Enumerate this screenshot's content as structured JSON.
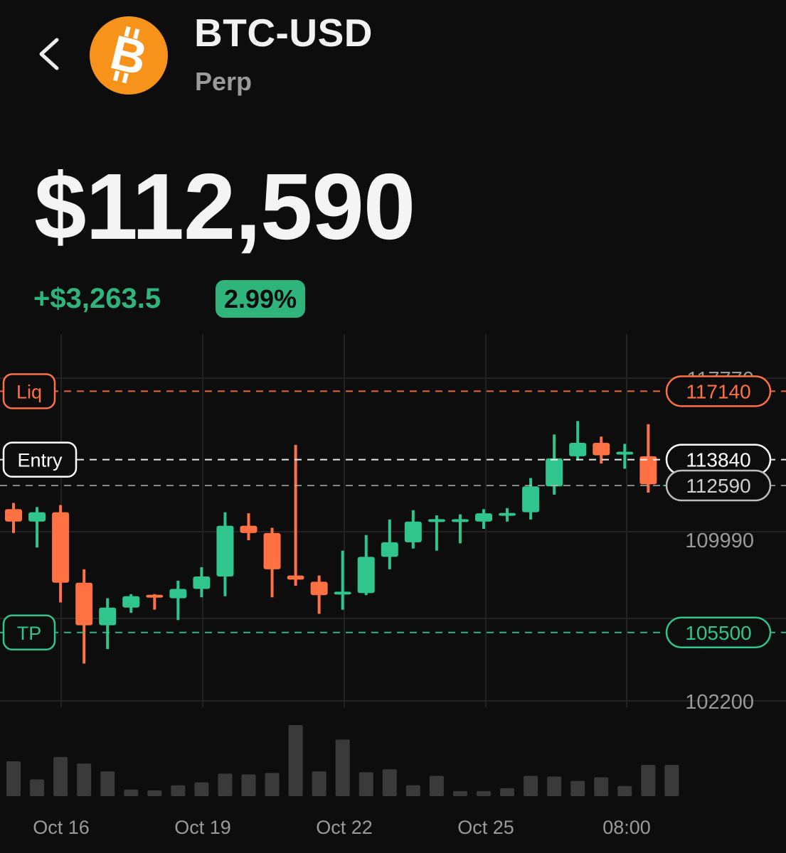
{
  "header": {
    "back_icon": "chevron-left-icon",
    "coin_icon": "bitcoin-icon",
    "symbol": "BTC-USD",
    "type": "Perp"
  },
  "price": {
    "value": "$112,590",
    "change": "+$3,263.5",
    "change_pct": "2.99%"
  },
  "colors": {
    "background": "#0d0d0d",
    "up": "#2fc58c",
    "down": "#ff7043",
    "bitcoin": "#f7931a",
    "grid": "#222222"
  },
  "chart_data": {
    "type": "candlestick",
    "ylim": [
      102200,
      117770
    ],
    "y_ticks": [
      "117770",
      "109990",
      "102200"
    ],
    "x_ticks": [
      "Oct 16",
      "Oct 19",
      "Oct 22",
      "Oct 25",
      "08:00"
    ],
    "reference_lines": [
      {
        "label": "Liq",
        "value": 117140,
        "value_label": "117140",
        "color": "#ff7043"
      },
      {
        "label": "Entry",
        "value": 113840,
        "value_label": "113840",
        "color": "#ffffff"
      },
      {
        "label": "",
        "value": 112590,
        "value_label": "112590",
        "color": "#bdbdbd"
      },
      {
        "label": "TP",
        "value": 105500,
        "value_label": "105500",
        "color": "#2fc58c"
      }
    ],
    "candles": [
      {
        "o": 111450,
        "h": 111750,
        "l": 110300,
        "c": 110850,
        "v": 48
      },
      {
        "o": 110850,
        "h": 111550,
        "l": 109600,
        "c": 111300,
        "v": 23
      },
      {
        "o": 111300,
        "h": 111650,
        "l": 106950,
        "c": 107900,
        "v": 54
      },
      {
        "o": 107900,
        "h": 108550,
        "l": 104000,
        "c": 105850,
        "v": 45
      },
      {
        "o": 105850,
        "h": 107150,
        "l": 104700,
        "c": 106700,
        "v": 34
      },
      {
        "o": 106700,
        "h": 107350,
        "l": 106450,
        "c": 107250,
        "v": 9
      },
      {
        "o": 107250,
        "h": 107350,
        "l": 106600,
        "c": 107150,
        "v": 8
      },
      {
        "o": 107150,
        "h": 108000,
        "l": 106100,
        "c": 107600,
        "v": 15
      },
      {
        "o": 107600,
        "h": 108650,
        "l": 107200,
        "c": 108200,
        "v": 19
      },
      {
        "o": 108200,
        "h": 111300,
        "l": 107250,
        "c": 110650,
        "v": 31
      },
      {
        "o": 110650,
        "h": 111250,
        "l": 109950,
        "c": 110300,
        "v": 30
      },
      {
        "o": 110300,
        "h": 110550,
        "l": 107200,
        "c": 108550,
        "v": 32
      },
      {
        "o": 108250,
        "h": 114550,
        "l": 107750,
        "c": 108050,
        "v": 98
      },
      {
        "o": 107950,
        "h": 108250,
        "l": 106400,
        "c": 107300,
        "v": 34
      },
      {
        "o": 107300,
        "h": 109450,
        "l": 106600,
        "c": 107400,
        "v": 78
      },
      {
        "o": 107400,
        "h": 110200,
        "l": 107300,
        "c": 109150,
        "v": 33
      },
      {
        "o": 109150,
        "h": 110950,
        "l": 108550,
        "c": 109850,
        "v": 37
      },
      {
        "o": 109850,
        "h": 111400,
        "l": 109550,
        "c": 110850,
        "v": 15
      },
      {
        "o": 110850,
        "h": 111150,
        "l": 109450,
        "c": 110900,
        "v": 28
      },
      {
        "o": 110900,
        "h": 111200,
        "l": 109800,
        "c": 110900,
        "v": 7
      },
      {
        "o": 110850,
        "h": 111450,
        "l": 110500,
        "c": 111250,
        "v": 7
      },
      {
        "o": 111150,
        "h": 111500,
        "l": 110850,
        "c": 111200,
        "v": 11
      },
      {
        "o": 111300,
        "h": 112950,
        "l": 110950,
        "c": 112550,
        "v": 28
      },
      {
        "o": 112550,
        "h": 115050,
        "l": 112150,
        "c": 113900,
        "v": 27
      },
      {
        "o": 114000,
        "h": 115700,
        "l": 113800,
        "c": 114650,
        "v": 21
      },
      {
        "o": 114650,
        "h": 114950,
        "l": 113650,
        "c": 114050,
        "v": 26
      },
      {
        "o": 114050,
        "h": 114600,
        "l": 113400,
        "c": 114150,
        "v": 14
      },
      {
        "o": 114000,
        "h": 115550,
        "l": 112250,
        "c": 112650,
        "v": 43
      },
      {
        "o": 112590,
        "h": 112590,
        "l": 112590,
        "c": 112590,
        "v": 43
      }
    ]
  }
}
